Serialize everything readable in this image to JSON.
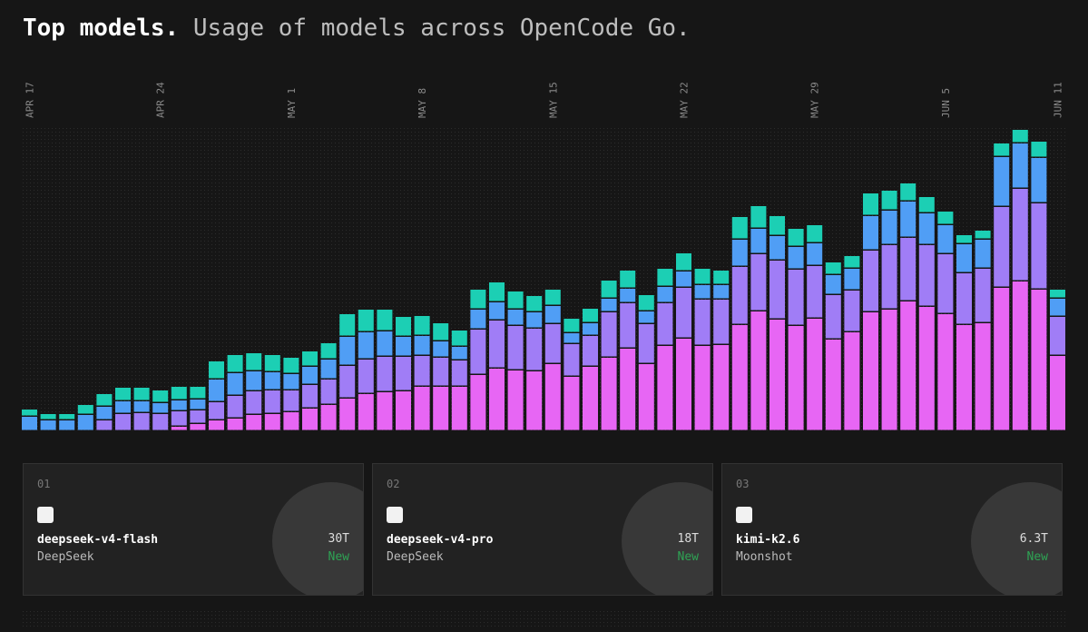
{
  "chart_data": {
    "type": "stacked-bar",
    "title": "Top models.",
    "subtitle": "Usage of models across OpenCode Go.",
    "categories": [
      "APR 17",
      null,
      null,
      null,
      null,
      null,
      null,
      "APR 24",
      null,
      null,
      null,
      null,
      null,
      null,
      "MAY 1",
      null,
      null,
      null,
      null,
      null,
      null,
      "MAY 8",
      null,
      null,
      null,
      null,
      null,
      null,
      "MAY 15",
      null,
      null,
      null,
      null,
      null,
      null,
      "MAY 22",
      null,
      null,
      null,
      null,
      null,
      null,
      "MAY 29",
      null,
      null,
      null,
      null,
      null,
      null,
      "JUN 5",
      null,
      null,
      null,
      null,
      null,
      "JUN 11"
    ],
    "series": [
      {
        "color": "#e766f4",
        "values": [
          0,
          0,
          0,
          0,
          0,
          0,
          0,
          0,
          5,
          8,
          12,
          14,
          18,
          19,
          21,
          25,
          29,
          36,
          41,
          43,
          44,
          49,
          49,
          49,
          62,
          69,
          67,
          66,
          74,
          60,
          71,
          81,
          91,
          74,
          94,
          102,
          94,
          95,
          117,
          132,
          123,
          116,
          124,
          101,
          109,
          131,
          134,
          143,
          137,
          129,
          117,
          119,
          158,
          165,
          156,
          83
        ]
      },
      {
        "color": "#a07df6",
        "values": [
          0,
          0,
          0,
          0,
          12,
          19,
          20,
          19,
          17,
          15,
          20,
          25,
          26,
          26,
          24,
          26,
          28,
          36,
          38,
          39,
          38,
          34,
          32,
          29,
          50,
          53,
          49,
          47,
          44,
          36,
          34,
          50,
          50,
          44,
          47,
          56,
          51,
          50,
          64,
          63,
          65,
          62,
          58,
          49,
          46,
          68,
          71,
          70,
          68,
          66,
          57,
          60,
          89,
          102,
          95,
          43
        ]
      },
      {
        "color": "#509ef5",
        "values": [
          16,
          12,
          12,
          18,
          15,
          14,
          13,
          12,
          12,
          12,
          25,
          25,
          22,
          20,
          18,
          20,
          22,
          32,
          30,
          28,
          22,
          22,
          18,
          15,
          22,
          20,
          18,
          18,
          20,
          12,
          14,
          15,
          16,
          14,
          18,
          18,
          16,
          16,
          30,
          28,
          27,
          25,
          25,
          22,
          24,
          38,
          38,
          40,
          35,
          32,
          32,
          32,
          55,
          50,
          50,
          20
        ]
      },
      {
        "color": "#1ccfb4",
        "values": [
          8,
          7,
          7,
          11,
          14,
          15,
          15,
          14,
          15,
          14,
          20,
          20,
          20,
          19,
          18,
          17,
          18,
          25,
          25,
          24,
          22,
          22,
          20,
          18,
          22,
          22,
          20,
          18,
          18,
          16,
          16,
          20,
          20,
          18,
          20,
          20,
          18,
          16,
          25,
          25,
          22,
          20,
          20,
          14,
          14,
          25,
          22,
          20,
          18,
          15,
          10,
          10,
          15,
          15,
          18,
          10
        ]
      }
    ]
  },
  "cards": [
    {
      "rank": "01",
      "name": "deepseek-v4-flash",
      "provider": "DeepSeek",
      "tokens": "30T",
      "status": "New"
    },
    {
      "rank": "02",
      "name": "deepseek-v4-pro",
      "provider": "DeepSeek",
      "tokens": "18T",
      "status": "New"
    },
    {
      "rank": "03",
      "name": "kimi-k2.6",
      "provider": "Moonshot",
      "tokens": "6.3T",
      "status": "New"
    }
  ]
}
